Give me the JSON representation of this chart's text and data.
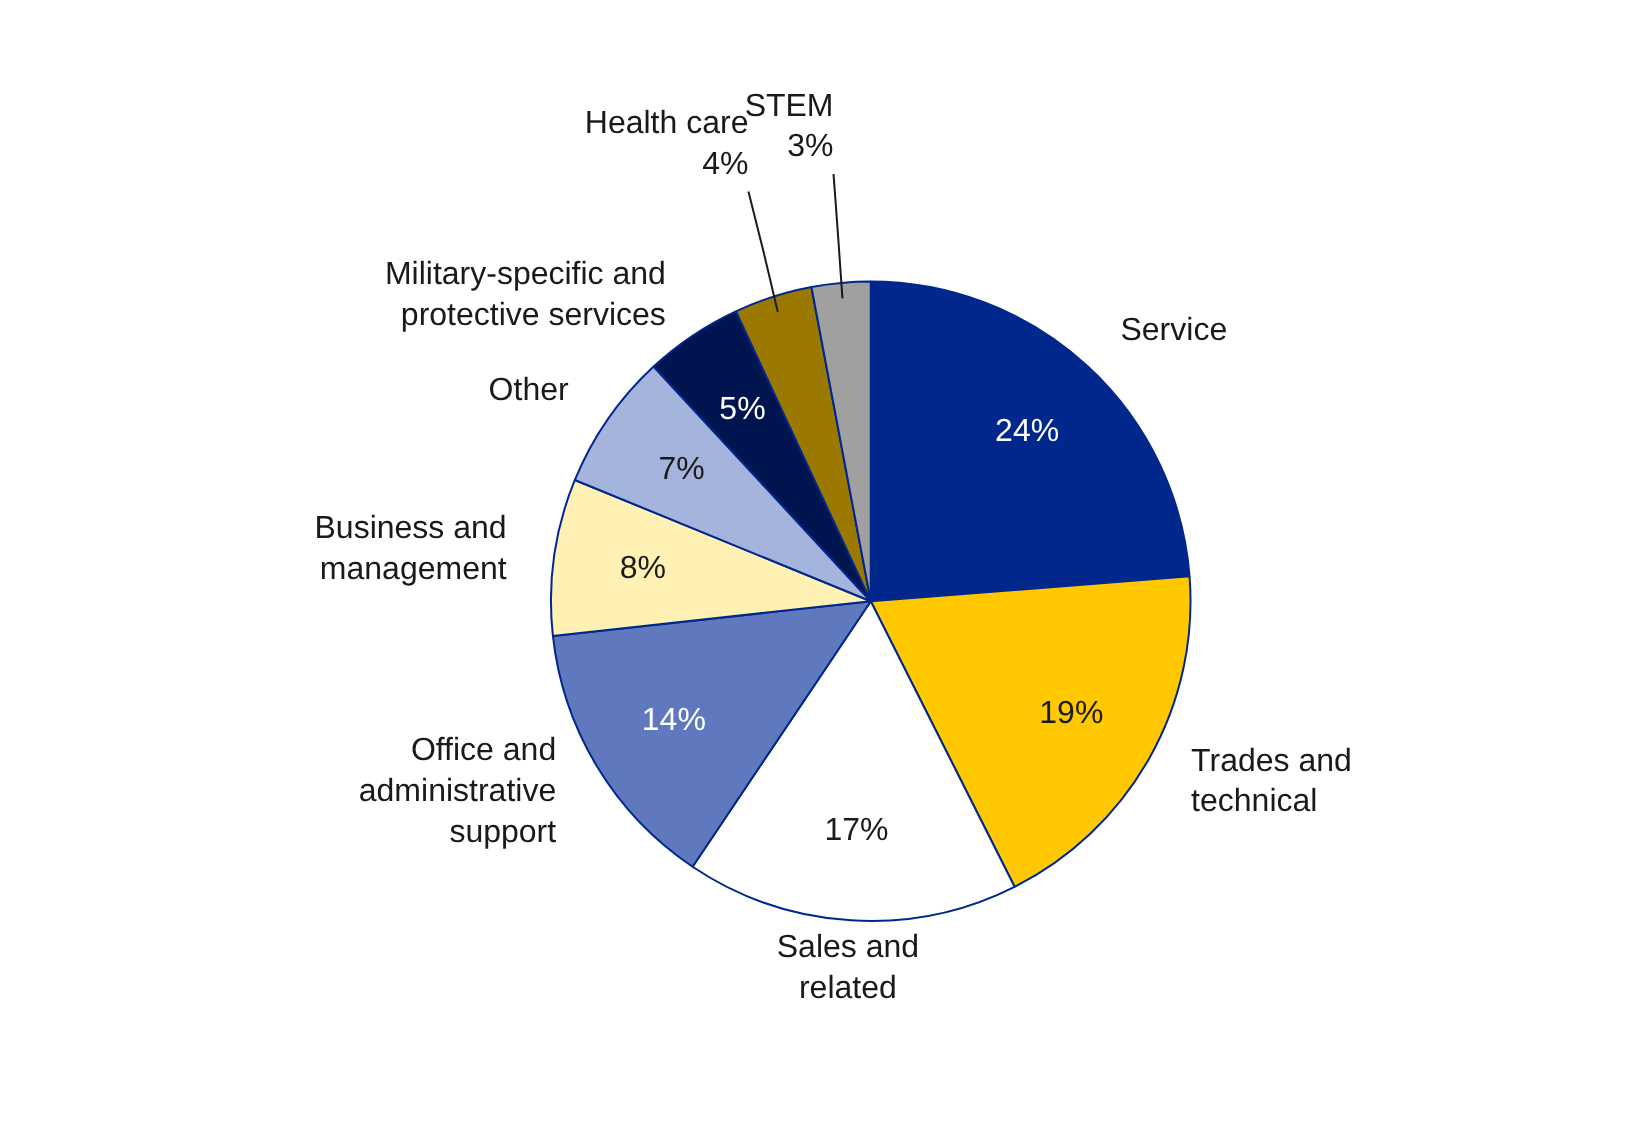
{
  "chart_data": {
    "type": "pie",
    "categories": [
      "Service",
      "Trades and\ntechnical",
      "Sales and\nrelated",
      "Office and\nadministrative\nsupport",
      "Business and\nmanagement",
      "Other",
      "Military-specific and\nprotective services",
      "Health care",
      "STEM"
    ],
    "values": [
      24,
      19,
      17,
      14,
      8,
      7,
      5,
      4,
      3
    ],
    "colors": [
      "#00288c",
      "#ffc800",
      "#ffffff",
      "#5f78be",
      "#fff0b4",
      "#a5b4dc",
      "#001450",
      "#9b7800",
      "#a0a0a0"
    ],
    "value_labels": [
      "24%",
      "19%",
      "17%",
      "14%",
      "8%",
      "7%",
      "5%",
      "4%",
      "3%"
    ]
  }
}
